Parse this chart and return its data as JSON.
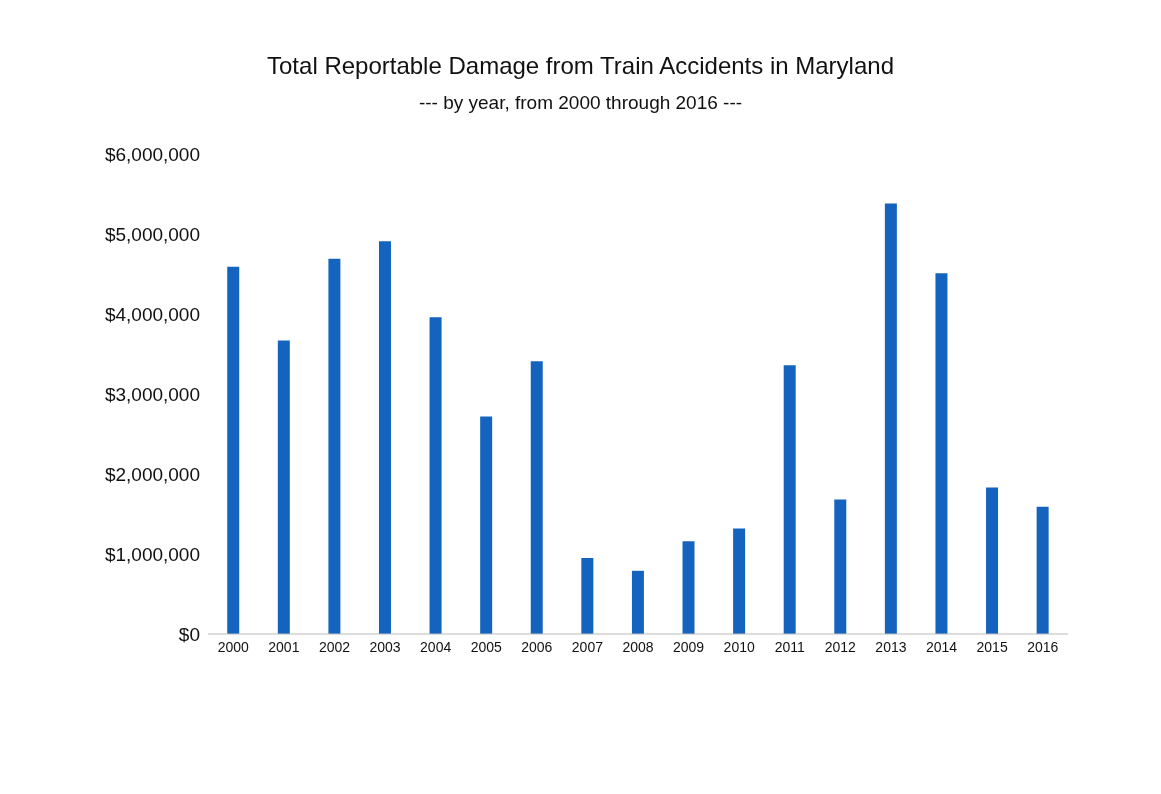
{
  "chart_data": {
    "type": "bar",
    "title": "Total Reportable Damage from Train Accidents in Maryland",
    "subtitle": "--- by year, from 2000 through 2016 ---",
    "categories": [
      "2000",
      "2001",
      "2002",
      "2003",
      "2004",
      "2005",
      "2006",
      "2007",
      "2008",
      "2009",
      "2010",
      "2011",
      "2012",
      "2013",
      "2014",
      "2015",
      "2016"
    ],
    "values": [
      4590000,
      3670000,
      4690000,
      4910000,
      3960000,
      2720000,
      3410000,
      950000,
      790000,
      1160000,
      1320000,
      3360000,
      1680000,
      5380000,
      4510000,
      1830000,
      1590000
    ],
    "color": "#1464bf",
    "ylim": [
      0,
      6000000
    ],
    "yticks": [
      {
        "value": 0,
        "label": "$0"
      },
      {
        "value": 1000000,
        "label": "$1,000,000"
      },
      {
        "value": 2000000,
        "label": "$2,000,000"
      },
      {
        "value": 3000000,
        "label": "$3,000,000"
      },
      {
        "value": 4000000,
        "label": "$4,000,000"
      },
      {
        "value": 5000000,
        "label": "$5,000,000"
      },
      {
        "value": 6000000,
        "label": "$6,000,000"
      }
    ]
  }
}
